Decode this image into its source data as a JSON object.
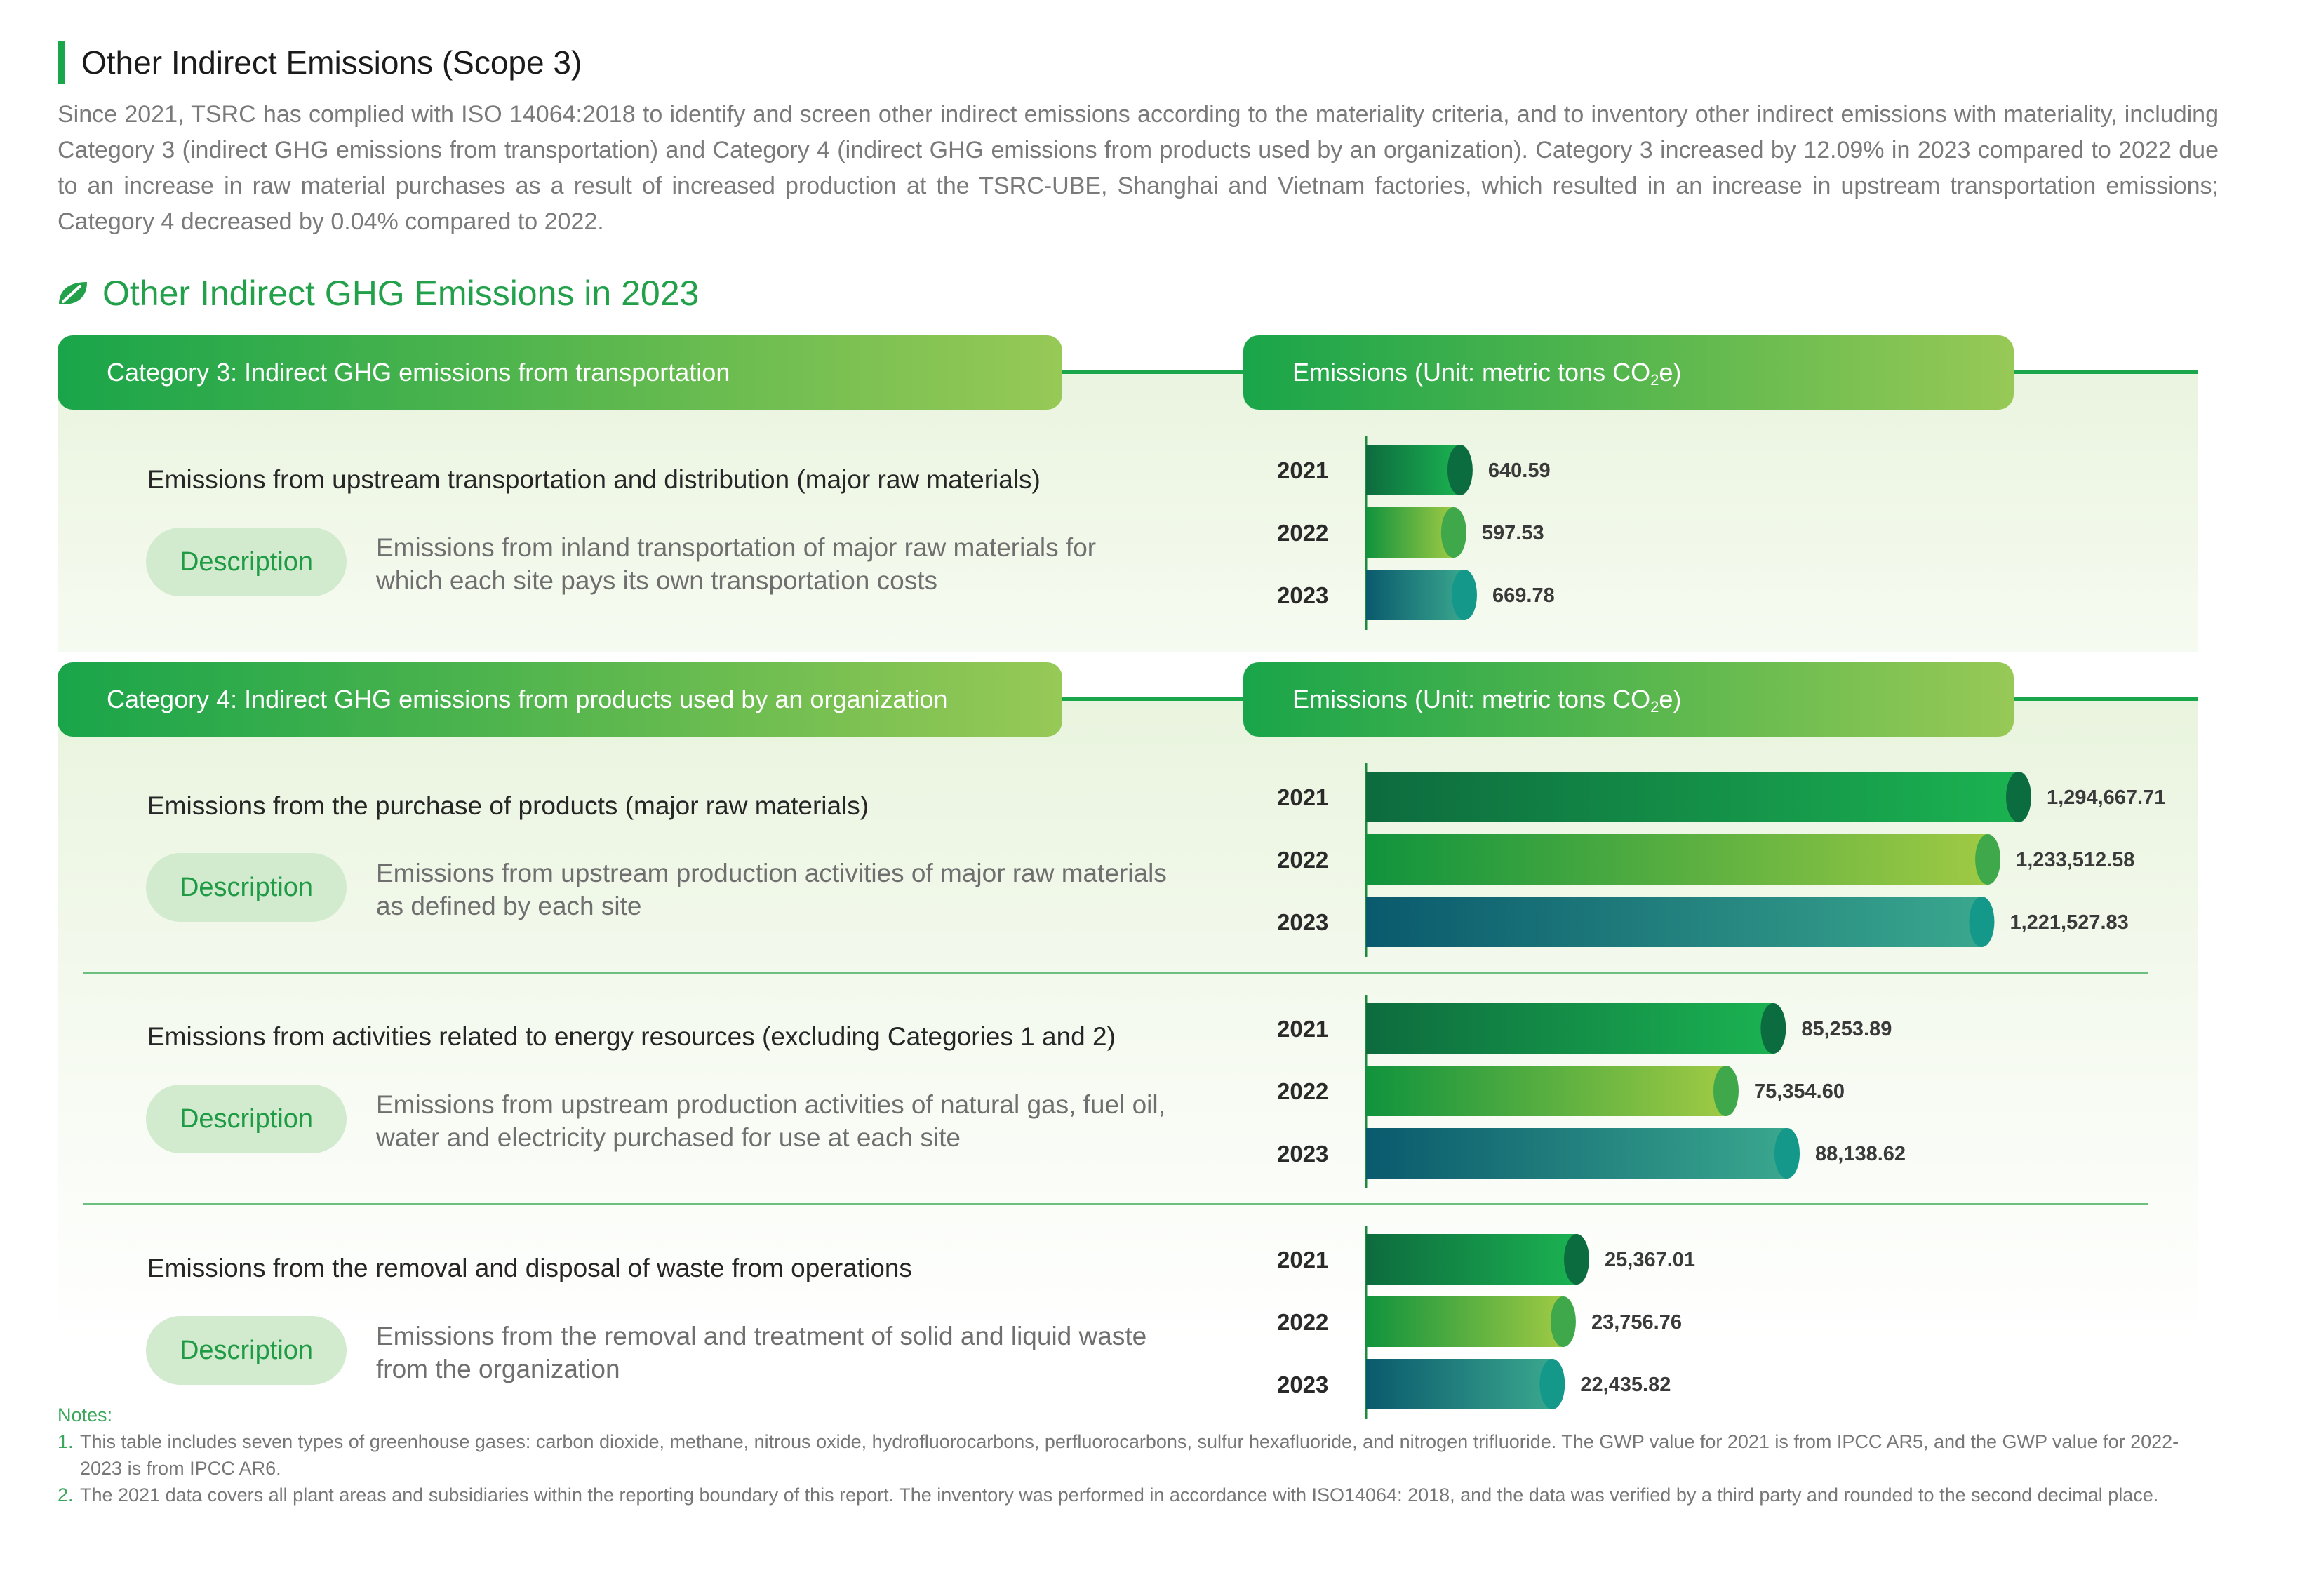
{
  "header": {
    "title": "Other Indirect Emissions (Scope 3)",
    "intro": "Since 2021, TSRC has complied with ISO 14064:2018 to identify and screen other indirect emissions according to the materiality criteria, and to inventory other indirect emissions with materiality, including Category 3 (indirect GHG emissions from transportation) and Category 4 (indirect GHG emissions from products used by an organization). Category 3 increased by 12.09% in 2023 compared to 2022 due to an increase in raw material purchases as a result of increased production at the TSRC-UBE, Shanghai and Vietnam factories, which resulted in an increase in upstream transportation emissions; Category 4 decreased by 0.04% compared to 2022."
  },
  "section": {
    "title": "Other Indirect GHG Emissions in 2023",
    "icon": "leaf-icon"
  },
  "emissions_unit": {
    "prefix": "Emissions (Unit: metric tons CO",
    "subscript": "2",
    "suffix": "e)"
  },
  "categories": [
    {
      "title": "Category 3: Indirect GHG emissions from transportation",
      "items": [
        {
          "title": "Emissions from upstream transportation and distribution (major raw materials)",
          "badge": "Description",
          "description": "Emissions from inland transportation of major raw materials for which each site pays its own transportation costs"
        }
      ]
    },
    {
      "title": "Category 4: Indirect GHG emissions from products used by an organization",
      "items": [
        {
          "title": "Emissions from the purchase of products (major raw materials)",
          "badge": "Description",
          "description": "Emissions from upstream production activities of major raw materials as defined by each site"
        },
        {
          "title": "Emissions from activities related to energy resources (excluding Categories 1 and 2)",
          "badge": "Description",
          "description": "Emissions from upstream production activities of natural gas, fuel oil, water and electricity purchased for use at each site"
        },
        {
          "title": "Emissions from the removal and disposal of waste from operations",
          "badge": "Description",
          "description": "Emissions from the removal and treatment of solid and liquid waste from the organization"
        }
      ]
    }
  ],
  "chart_data": [
    {
      "type": "bar",
      "orientation": "horizontal",
      "categories": [
        "2021",
        "2022",
        "2023"
      ],
      "values": [
        640.59,
        597.53,
        669.78
      ],
      "value_labels": [
        "640.59",
        "597.53",
        "669.78"
      ]
    },
    {
      "type": "bar",
      "orientation": "horizontal",
      "categories": [
        "2021",
        "2022",
        "2023"
      ],
      "values": [
        1294667.71,
        1233512.58,
        1221527.83
      ],
      "value_labels": [
        "1,294,667.71",
        "1,233,512.58",
        "1,221,527.83"
      ]
    },
    {
      "type": "bar",
      "orientation": "horizontal",
      "categories": [
        "2021",
        "2022",
        "2023"
      ],
      "values": [
        85253.89,
        75354.6,
        88138.62
      ],
      "value_labels": [
        "85,253.89",
        "75,354.60",
        "88,138.62"
      ]
    },
    {
      "type": "bar",
      "orientation": "horizontal",
      "categories": [
        "2021",
        "2022",
        "2023"
      ],
      "values": [
        25367.01,
        23756.76,
        22435.82
      ],
      "value_labels": [
        "25,367.01",
        "23,756.76",
        "22,435.82"
      ]
    }
  ],
  "bar_colors": [
    {
      "start": "#0d6b3e",
      "end": "#1bb251",
      "cap": "#0b6d3f"
    },
    {
      "start": "#10933d",
      "end": "#9fca44",
      "cap": "#3fa84a"
    },
    {
      "start": "#0a5a6d",
      "end": "#3aa78e",
      "cap": "#14988a"
    }
  ],
  "notes": {
    "title": "Notes:",
    "items": [
      {
        "num": "1.",
        "text": "This table includes seven types of greenhouse gases: carbon dioxide, methane, nitrous oxide, hydrofluorocarbons, perfluorocarbons, sulfur hexafluoride, and nitrogen trifluoride. The GWP value for 2021 is from IPCC AR5, and the GWP value for 2022-2023 is from IPCC AR6."
      },
      {
        "num": "2.",
        "text": "The 2021 data covers all plant areas and subsidiaries within the reporting boundary of this report. The inventory was performed in accordance with ISO14064: 2018, and the data was verified by a third party and rounded to the second decimal place."
      }
    ]
  }
}
